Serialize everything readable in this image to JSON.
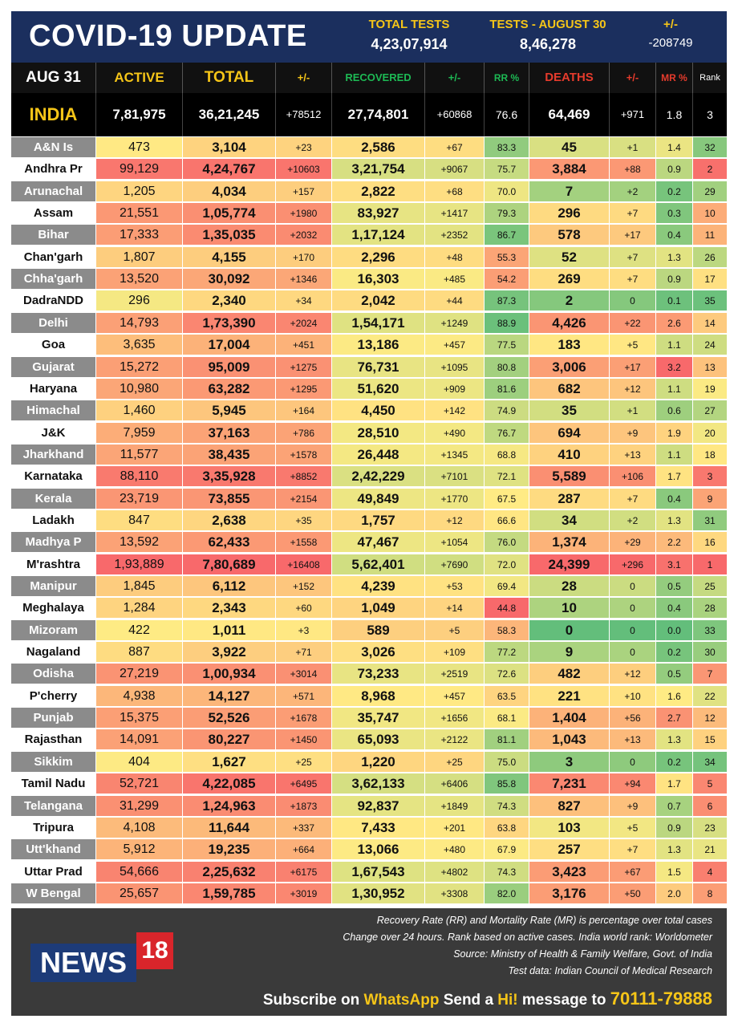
{
  "header": {
    "title": "COVID-19 UPDATE",
    "total_tests_label": "TOTAL TESTS",
    "total_tests_value": "4,23,07,914",
    "tests_day_label": "TESTS - AUGUST 30",
    "tests_day_value": "8,46,278",
    "change_label": "+/-",
    "change_value": "-208749"
  },
  "columns": {
    "date": "AUG 31",
    "active": "ACTIVE",
    "total": "TOTAL",
    "total_change": "+/-",
    "recovered": "RECOVERED",
    "recovered_change": "+/-",
    "rr": "RR %",
    "deaths": "DEATHS",
    "deaths_change": "+/-",
    "mr": "MR %",
    "rank": "Rank"
  },
  "india": {
    "name": "INDIA",
    "active": "7,81,975",
    "total": "36,21,245",
    "total_change": "+78512",
    "recovered": "27,74,801",
    "recovered_change": "+60868",
    "rr": "76.6",
    "deaths": "64,469",
    "deaths_change": "+971",
    "mr": "1.8",
    "rank": "3"
  },
  "states": [
    [
      "A&N Is",
      "473",
      "3,104",
      "+23",
      "2,586",
      "+67",
      "83.3",
      "45",
      "+1",
      "1.4",
      "32"
    ],
    [
      "Andhra Pr",
      "99,129",
      "4,24,767",
      "+10603",
      "3,21,754",
      "+9067",
      "75.7",
      "3,884",
      "+88",
      "0.9",
      "2"
    ],
    [
      "Arunachal",
      "1,205",
      "4,034",
      "+157",
      "2,822",
      "+68",
      "70.0",
      "7",
      "+2",
      "0.2",
      "29"
    ],
    [
      "Assam",
      "21,551",
      "1,05,774",
      "+1980",
      "83,927",
      "+1417",
      "79.3",
      "296",
      "+7",
      "0.3",
      "10"
    ],
    [
      "Bihar",
      "17,333",
      "1,35,035",
      "+2032",
      "1,17,124",
      "+2352",
      "86.7",
      "578",
      "+17",
      "0.4",
      "11"
    ],
    [
      "Chan'garh",
      "1,807",
      "4,155",
      "+170",
      "2,296",
      "+48",
      "55.3",
      "52",
      "+7",
      "1.3",
      "26"
    ],
    [
      "Chha'garh",
      "13,520",
      "30,092",
      "+1346",
      "16,303",
      "+485",
      "54.2",
      "269",
      "+7",
      "0.9",
      "17"
    ],
    [
      "DadraNDD",
      "296",
      "2,340",
      "+34",
      "2,042",
      "+44",
      "87.3",
      "2",
      "0",
      "0.1",
      "35"
    ],
    [
      "Delhi",
      "14,793",
      "1,73,390",
      "+2024",
      "1,54,171",
      "+1249",
      "88.9",
      "4,426",
      "+22",
      "2.6",
      "14"
    ],
    [
      "Goa",
      "3,635",
      "17,004",
      "+451",
      "13,186",
      "+457",
      "77.5",
      "183",
      "+5",
      "1.1",
      "24"
    ],
    [
      "Gujarat",
      "15,272",
      "95,009",
      "+1275",
      "76,731",
      "+1095",
      "80.8",
      "3,006",
      "+17",
      "3.2",
      "13"
    ],
    [
      "Haryana",
      "10,980",
      "63,282",
      "+1295",
      "51,620",
      "+909",
      "81.6",
      "682",
      "+12",
      "1.1",
      "19"
    ],
    [
      "Himachal",
      "1,460",
      "5,945",
      "+164",
      "4,450",
      "+142",
      "74.9",
      "35",
      "+1",
      "0.6",
      "27"
    ],
    [
      "J&K",
      "7,959",
      "37,163",
      "+786",
      "28,510",
      "+490",
      "76.7",
      "694",
      "+9",
      "1.9",
      "20"
    ],
    [
      "Jharkhand",
      "11,577",
      "38,435",
      "+1578",
      "26,448",
      "+1345",
      "68.8",
      "410",
      "+13",
      "1.1",
      "18"
    ],
    [
      "Karnataka",
      "88,110",
      "3,35,928",
      "+8852",
      "2,42,229",
      "+7101",
      "72.1",
      "5,589",
      "+106",
      "1.7",
      "3"
    ],
    [
      "Kerala",
      "23,719",
      "73,855",
      "+2154",
      "49,849",
      "+1770",
      "67.5",
      "287",
      "+7",
      "0.4",
      "9"
    ],
    [
      "Ladakh",
      "847",
      "2,638",
      "+35",
      "1,757",
      "+12",
      "66.6",
      "34",
      "+2",
      "1.3",
      "31"
    ],
    [
      "Madhya P",
      "13,592",
      "62,433",
      "+1558",
      "47,467",
      "+1054",
      "76.0",
      "1,374",
      "+29",
      "2.2",
      "16"
    ],
    [
      "M'rashtra",
      "1,93,889",
      "7,80,689",
      "+16408",
      "5,62,401",
      "+7690",
      "72.0",
      "24,399",
      "+296",
      "3.1",
      "1"
    ],
    [
      "Manipur",
      "1,845",
      "6,112",
      "+152",
      "4,239",
      "+53",
      "69.4",
      "28",
      "0",
      "0.5",
      "25"
    ],
    [
      "Meghalaya",
      "1,284",
      "2,343",
      "+60",
      "1,049",
      "+14",
      "44.8",
      "10",
      "0",
      "0.4",
      "28"
    ],
    [
      "Mizoram",
      "422",
      "1,011",
      "+3",
      "589",
      "+5",
      "58.3",
      "0",
      "0",
      "0.0",
      "33"
    ],
    [
      "Nagaland",
      "887",
      "3,922",
      "+71",
      "3,026",
      "+109",
      "77.2",
      "9",
      "0",
      "0.2",
      "30"
    ],
    [
      "Odisha",
      "27,219",
      "1,00,934",
      "+3014",
      "73,233",
      "+2519",
      "72.6",
      "482",
      "+12",
      "0.5",
      "7"
    ],
    [
      "P'cherry",
      "4,938",
      "14,127",
      "+571",
      "8,968",
      "+457",
      "63.5",
      "221",
      "+10",
      "1.6",
      "22"
    ],
    [
      "Punjab",
      "15,375",
      "52,526",
      "+1678",
      "35,747",
      "+1656",
      "68.1",
      "1,404",
      "+56",
      "2.7",
      "12"
    ],
    [
      "Rajasthan",
      "14,091",
      "80,227",
      "+1450",
      "65,093",
      "+2122",
      "81.1",
      "1,043",
      "+13",
      "1.3",
      "15"
    ],
    [
      "Sikkim",
      "404",
      "1,627",
      "+25",
      "1,220",
      "+25",
      "75.0",
      "3",
      "0",
      "0.2",
      "34"
    ],
    [
      "Tamil Nadu",
      "52,721",
      "4,22,085",
      "+6495",
      "3,62,133",
      "+6406",
      "85.8",
      "7,231",
      "+94",
      "1.7",
      "5"
    ],
    [
      "Telangana",
      "31,299",
      "1,24,963",
      "+1873",
      "92,837",
      "+1849",
      "74.3",
      "827",
      "+9",
      "0.7",
      "6"
    ],
    [
      "Tripura",
      "4,108",
      "11,644",
      "+337",
      "7,433",
      "+201",
      "63.8",
      "103",
      "+5",
      "0.9",
      "23"
    ],
    [
      "Utt'khand",
      "5,912",
      "19,235",
      "+664",
      "13,066",
      "+480",
      "67.9",
      "257",
      "+7",
      "1.3",
      "21"
    ],
    [
      "Uttar Prad",
      "54,666",
      "2,25,632",
      "+6175",
      "1,67,543",
      "+4802",
      "74.3",
      "3,423",
      "+67",
      "1.5",
      "4"
    ],
    [
      "W Bengal",
      "25,657",
      "1,59,785",
      "+3019",
      "1,30,952",
      "+3308",
      "82.0",
      "3,176",
      "+50",
      "2.0",
      "8"
    ]
  ],
  "colors": {
    "header_bg": "#1b2f5e",
    "accent_yellow": "#f5c518",
    "green_label": "#1db954",
    "red_label": "#e53b2c",
    "footer_bg": "#3a3a3a"
  },
  "footer": {
    "note1": "Recovery Rate (RR) and Mortality Rate (MR) is percentage over total cases",
    "note2": "Change over 24 hours. Rank based on active cases. India world rank: Worldometer",
    "note3": "Source: Ministry of Health & Family Welfare, Govt. of India",
    "note4": "Test data: Indian Council of Medical Research",
    "logo_news": "NEWS",
    "logo_18": "18",
    "subscribe_a": "Subscribe on ",
    "subscribe_whatsapp": "WhatsApp",
    "subscribe_b": " Send a ",
    "subscribe_hi": "Hi!",
    "subscribe_c": " message to ",
    "subscribe_num": "70111-79888"
  }
}
